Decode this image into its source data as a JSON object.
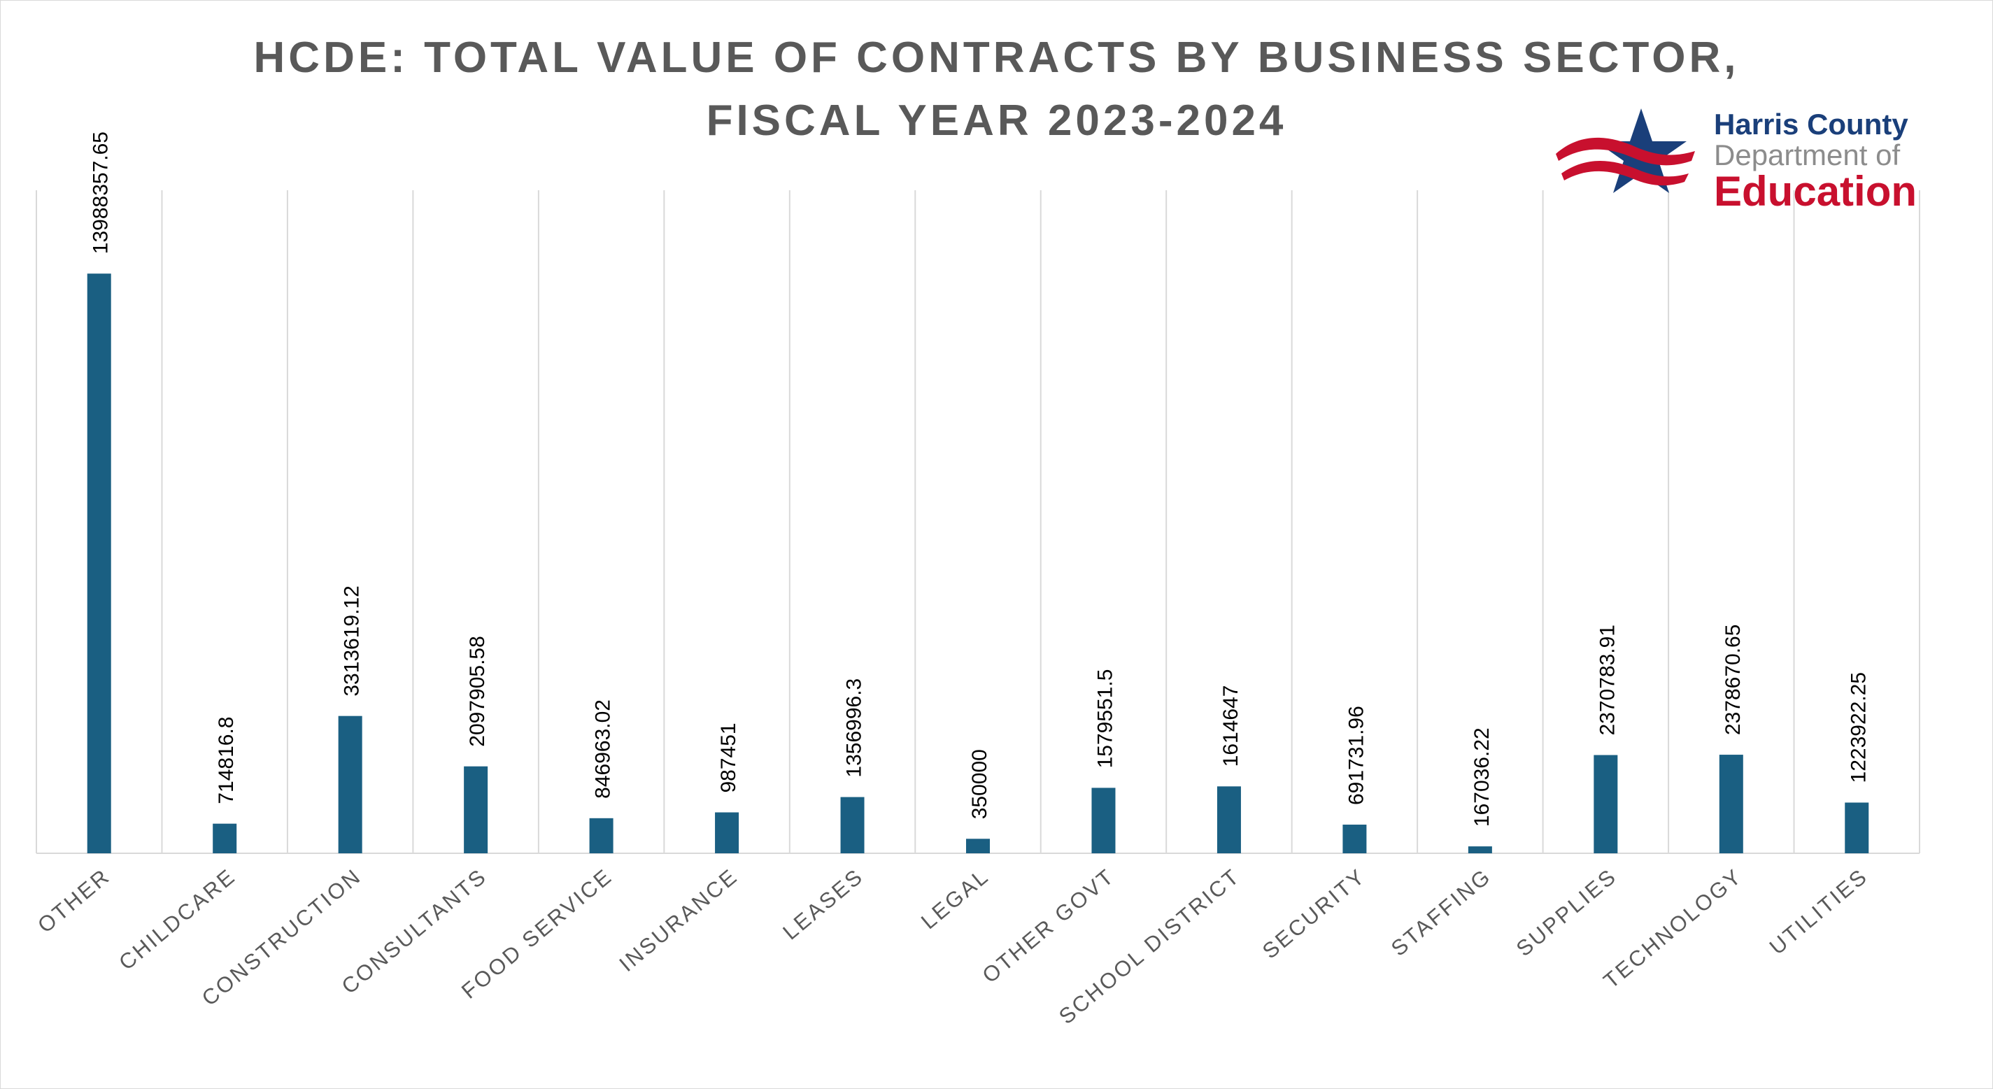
{
  "chart_data": {
    "type": "bar",
    "title_lines": [
      "HCDE: TOTAL VALUE OF CONTRACTS BY BUSINESS SECTOR,",
      "FISCAL YEAR 2023-2024"
    ],
    "categories": [
      "OTHER",
      "CHILDCARE",
      "CONSTRUCTION",
      "CONSULTANTS",
      "FOOD SERVICE",
      "INSURANCE",
      "LEASES",
      "LEGAL",
      "OTHER GOVT",
      "SCHOOL DISTRICT",
      "SECURITY",
      "STAFFING",
      "SUPPLIES",
      "TECHNOLOGY",
      "UTILITIES"
    ],
    "values": [
      13988357.65,
      714816.8,
      3313619.12,
      2097905.58,
      846963.02,
      987451,
      1356996.3,
      350000,
      1579551.5,
      1614647,
      691731.96,
      167036.22,
      2370783.91,
      2378670.65,
      1223922.25
    ],
    "value_labels": [
      "13988357.65",
      "714816.8",
      "3313619.12",
      "2097905.58",
      "846963.02",
      "987451",
      "1356996.3",
      "350000",
      "1579551.5",
      "1614647",
      "691731.96",
      "167036.22",
      "2370783.91",
      "2378670.65",
      "1223922.25"
    ],
    "ylim": [
      0,
      16000000
    ],
    "grid": "vertical",
    "bar_color": "#1a5f82",
    "xlabel": "",
    "ylabel": ""
  },
  "logo": {
    "line1": "Harris County",
    "line2": "Department of",
    "line3": "Education",
    "colors": {
      "blue": "#1a3f7a",
      "gray": "#8c8c8c",
      "red": "#c8102e"
    },
    "icon": "star-flag-icon"
  }
}
